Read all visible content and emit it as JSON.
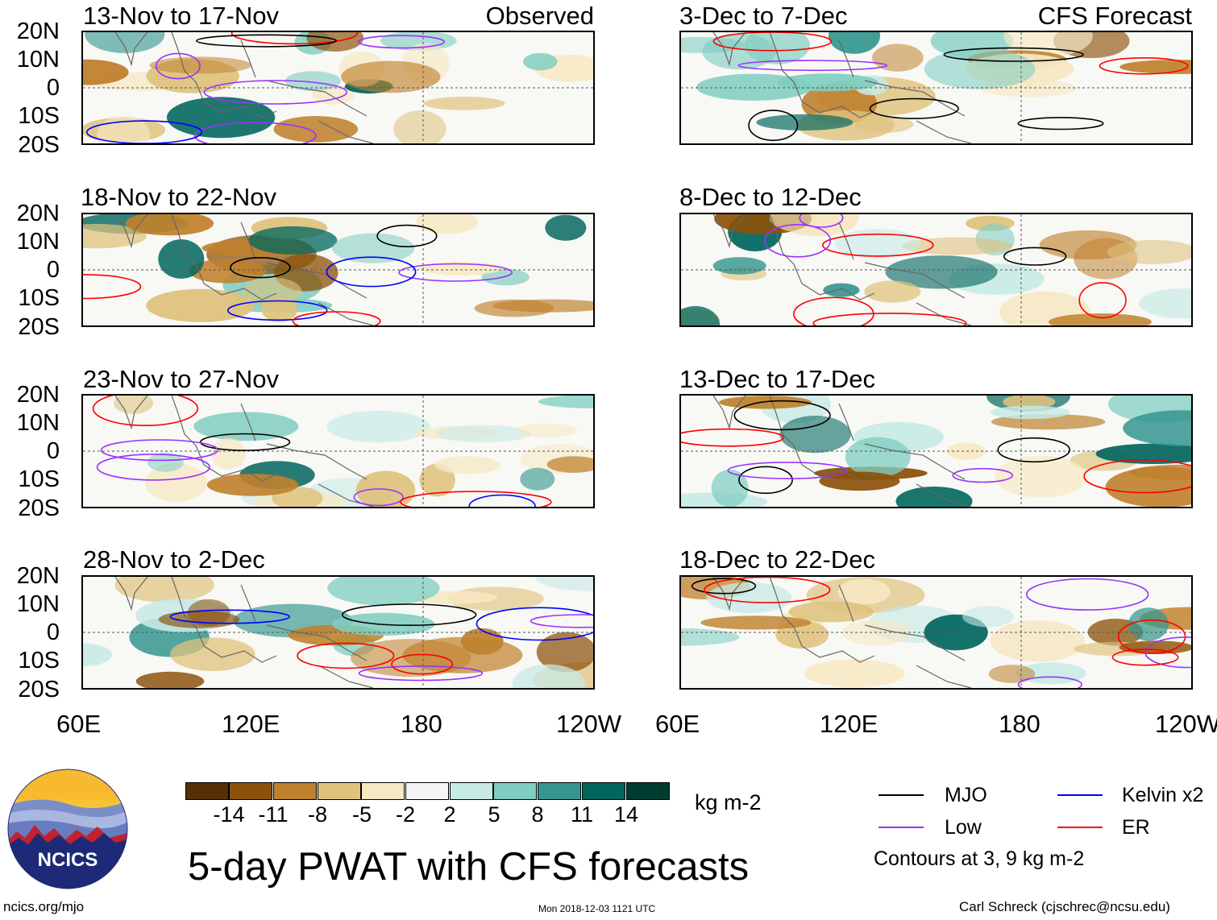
{
  "panels": {
    "observed_header": "Observed",
    "forecast_header": "CFS Forecast",
    "left_titles": [
      "13-Nov to 17-Nov",
      "18-Nov to 22-Nov",
      "23-Nov to 27-Nov",
      "28-Nov to 2-Dec"
    ],
    "right_titles": [
      "3-Dec to 7-Dec",
      "8-Dec to 12-Dec",
      "13-Dec to 17-Dec",
      "18-Dec to 22-Dec"
    ]
  },
  "axes": {
    "lat_labels": [
      "20N",
      "10N",
      "0",
      "10S",
      "20S"
    ],
    "lon_labels": [
      "60E",
      "120E",
      "180",
      "120W"
    ]
  },
  "colorbar": {
    "unit": "kg m-2",
    "labels": [
      "-14",
      "-11",
      "-8",
      "-5",
      "-2",
      "2",
      "5",
      "8",
      "11",
      "14"
    ],
    "colors": [
      "#543005",
      "#8c510a",
      "#bf812d",
      "#dfc27d",
      "#f6e8c3",
      "#f5f5f5",
      "#c7eae5",
      "#80cdc1",
      "#35978f",
      "#01665e",
      "#003c30"
    ]
  },
  "legend": {
    "mjo": "MJO",
    "low": "Low",
    "kelvin": "Kelvin x2",
    "er": "ER",
    "note": "Contours at 3, 9 kg m-2",
    "colors": {
      "mjo": "#000000",
      "low": "#9933ff",
      "kelvin": "#0000ff",
      "er": "#ff0000"
    }
  },
  "footer": {
    "logo_text": "NCICS",
    "title": "5-day PWAT with CFS forecasts",
    "url": "ncics.org/mjo",
    "timestamp": "Mon 2018-12-03 1121 UTC",
    "author": "Carl Schreck (cjschrec@ncsu.edu)"
  }
}
